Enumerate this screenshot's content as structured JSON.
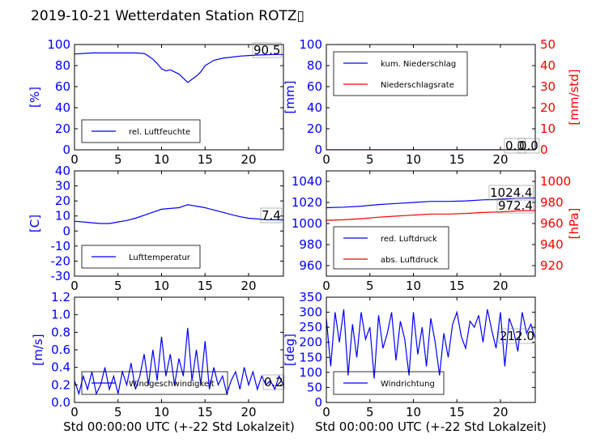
{
  "title": "2019-10-21 Wetterdaten Station ROTZ▯",
  "colors": {
    "primary": "#0000ff",
    "secondary": "#ff0000",
    "frame": "#000000"
  },
  "chart_data": [
    {
      "type": "line",
      "ylabel": "[%]",
      "xlim": [
        0,
        24
      ],
      "ylim": [
        0,
        100
      ],
      "xticks": [
        0,
        5,
        10,
        15,
        20
      ],
      "yticks": [
        0,
        20,
        40,
        60,
        80,
        100
      ],
      "legend": "bottom-left",
      "value_label": "90.5",
      "series": [
        {
          "name": "rel. Luftfeuchte",
          "color": "#0000ff",
          "x": [
            0,
            1,
            2,
            3,
            4,
            5,
            6,
            7,
            8,
            8.5,
            9,
            9.5,
            10,
            10.5,
            11,
            11.5,
            12,
            12.5,
            13,
            13.5,
            14,
            14.5,
            15,
            16,
            17,
            18,
            19,
            20,
            21,
            22,
            23,
            24
          ],
          "y": [
            91,
            91.5,
            92,
            92,
            92,
            92,
            92,
            92,
            91.5,
            89,
            86,
            82,
            77,
            75,
            76,
            74,
            72,
            68,
            64,
            67,
            70,
            74,
            80,
            85,
            87,
            88,
            89,
            89.5,
            90,
            90.3,
            90.5,
            90.5
          ]
        }
      ]
    },
    {
      "type": "line",
      "ylabel": "[mm]",
      "ylabel2": "[mm/std]",
      "xlim": [
        0,
        24
      ],
      "ylim": [
        0,
        100
      ],
      "ylim2": [
        0,
        50
      ],
      "xticks": [
        0,
        5,
        10,
        15,
        20
      ],
      "yticks": [
        0,
        20,
        40,
        60,
        80,
        100
      ],
      "yticks2": [
        0,
        10,
        20,
        30,
        40,
        50
      ],
      "legend": "top-left",
      "value_labels": [
        "0.0",
        "0.0"
      ],
      "series": [
        {
          "name": "kum. Niederschlag",
          "color": "#0000ff",
          "axis": "left",
          "x": [
            0,
            24
          ],
          "y": [
            0,
            0
          ]
        },
        {
          "name": "Niederschlagsrate",
          "color": "#ff0000",
          "axis": "right",
          "x": [
            0,
            24
          ],
          "y": [
            0,
            0
          ]
        }
      ]
    },
    {
      "type": "line",
      "ylabel": "[C]",
      "xlim": [
        0,
        24
      ],
      "ylim": [
        -30,
        40
      ],
      "xticks": [
        0,
        5,
        10,
        15,
        20
      ],
      "yticks": [
        -30,
        -20,
        -10,
        0,
        10,
        20,
        30,
        40
      ],
      "legend": "bottom-left",
      "value_label": "7.4",
      "series": [
        {
          "name": "Lufttemperatur",
          "color": "#0000ff",
          "x": [
            0,
            1,
            2,
            3,
            4,
            5,
            6,
            7,
            8,
            9,
            10,
            11,
            12,
            12.5,
            13,
            13.5,
            14,
            15,
            16,
            17,
            18,
            19,
            20,
            21,
            22,
            23,
            24
          ],
          "y": [
            6.5,
            6,
            5.5,
            5,
            5,
            6,
            7,
            8.5,
            10.5,
            12.5,
            14.5,
            15,
            15.5,
            16.5,
            17.5,
            17,
            16.5,
            15.5,
            14,
            12.5,
            11,
            9.5,
            8.5,
            8,
            7.5,
            7.5,
            7.4
          ]
        }
      ]
    },
    {
      "type": "line",
      "ylabel2": "[hPa]",
      "xlim": [
        0,
        24
      ],
      "ylim": [
        950,
        1050
      ],
      "ylim2": [
        910,
        1010
      ],
      "xticks": [
        0,
        5,
        10,
        15,
        20
      ],
      "yticks": [
        960,
        980,
        1000,
        1020,
        1040
      ],
      "yticks2": [
        920,
        940,
        960,
        980,
        1000
      ],
      "legend": "bottom-left",
      "value_labels": [
        "1024.4",
        "972.4"
      ],
      "series": [
        {
          "name": "red. Luftdruck",
          "color": "#0000ff",
          "axis": "left",
          "x": [
            0,
            2,
            4,
            6,
            8,
            10,
            12,
            14,
            16,
            18,
            20,
            22,
            24
          ],
          "y": [
            1015,
            1015.5,
            1016.5,
            1018,
            1019,
            1020,
            1021,
            1021,
            1021.5,
            1022.5,
            1023,
            1024,
            1024.4
          ]
        },
        {
          "name": "abs. Luftdruck",
          "color": "#ff0000",
          "axis": "right",
          "x": [
            0,
            2,
            4,
            6,
            8,
            10,
            12,
            14,
            16,
            18,
            20,
            22,
            24
          ],
          "y": [
            963,
            963.5,
            964.5,
            966,
            967,
            968,
            969,
            969,
            969.5,
            970.5,
            971,
            972,
            972.4
          ]
        }
      ]
    },
    {
      "type": "line",
      "ylabel": "[m/s]",
      "xlabel": "Std 00:00:00 UTC (+-22 Std Lokalzeit)",
      "xlim": [
        0,
        24
      ],
      "ylim": [
        0,
        1.2
      ],
      "xticks": [
        0,
        5,
        10,
        15,
        20
      ],
      "yticks": [
        0.0,
        0.2,
        0.4,
        0.6,
        0.8,
        1.0,
        1.2
      ],
      "legend": "bottom-center",
      "value_label": "0.2",
      "series": [
        {
          "name": "Windgeschwindigkeit",
          "color": "#0000ff",
          "x": [
            0,
            0.5,
            1,
            1.5,
            2,
            2.5,
            3,
            3.5,
            4,
            4.5,
            5,
            5.5,
            6,
            6.5,
            7,
            7.5,
            8,
            8.5,
            9,
            9.5,
            10,
            10.5,
            11,
            11.5,
            12,
            12.5,
            13,
            13.5,
            14,
            14.5,
            15,
            15.5,
            16,
            16.5,
            17,
            17.5,
            18,
            18.5,
            19,
            19.5,
            20,
            20.5,
            21,
            21.5,
            22,
            22.5,
            23,
            23.5,
            24
          ],
          "y": [
            0.25,
            0.1,
            0.3,
            0.15,
            0.35,
            0.1,
            0.2,
            0.4,
            0.15,
            0.3,
            0.1,
            0.35,
            0.2,
            0.45,
            0.15,
            0.3,
            0.55,
            0.2,
            0.6,
            0.25,
            0.75,
            0.3,
            0.55,
            0.2,
            0.5,
            0.3,
            0.85,
            0.25,
            0.6,
            0.2,
            0.7,
            0.15,
            0.4,
            0.2,
            0.3,
            0.1,
            0.25,
            0.35,
            0.15,
            0.4,
            0.2,
            0.35,
            0.15,
            0.3,
            0.2,
            0.25,
            0.15,
            0.3,
            0.2
          ]
        }
      ]
    },
    {
      "type": "line",
      "ylabel": "[deg]",
      "xlabel": "Std 00:00:00 UTC (+-22 Std Lokalzeit)",
      "xlim": [
        0,
        24
      ],
      "ylim": [
        0,
        350
      ],
      "xticks": [
        0,
        5,
        10,
        15,
        20
      ],
      "yticks": [
        0,
        50,
        100,
        150,
        200,
        250,
        300,
        350
      ],
      "legend": "bottom-left",
      "value_label": "212.0",
      "series": [
        {
          "name": "Windrichtung",
          "color": "#0000ff",
          "x": [
            0,
            0.5,
            1,
            1.5,
            2,
            2.5,
            3,
            3.5,
            4,
            4.5,
            5,
            5.5,
            6,
            6.5,
            7,
            7.5,
            8,
            8.5,
            9,
            9.5,
            10,
            10.5,
            11,
            11.5,
            12,
            12.5,
            13,
            13.5,
            14,
            14.5,
            15,
            15.5,
            16,
            16.5,
            17,
            17.5,
            18,
            18.5,
            19,
            19.5,
            20,
            20.5,
            21,
            21.5,
            22,
            22.5,
            23,
            23.5,
            24
          ],
          "y": [
            280,
            120,
            300,
            200,
            310,
            90,
            260,
            150,
            300,
            210,
            250,
            80,
            290,
            180,
            230,
            300,
            140,
            270,
            210,
            90,
            300,
            160,
            250,
            120,
            280,
            200,
            90,
            230,
            150,
            260,
            300,
            220,
            180,
            270,
            250,
            290,
            200,
            310,
            240,
            180,
            300,
            120,
            280,
            240,
            170,
            300,
            230,
            260,
            212
          ]
        }
      ]
    }
  ]
}
